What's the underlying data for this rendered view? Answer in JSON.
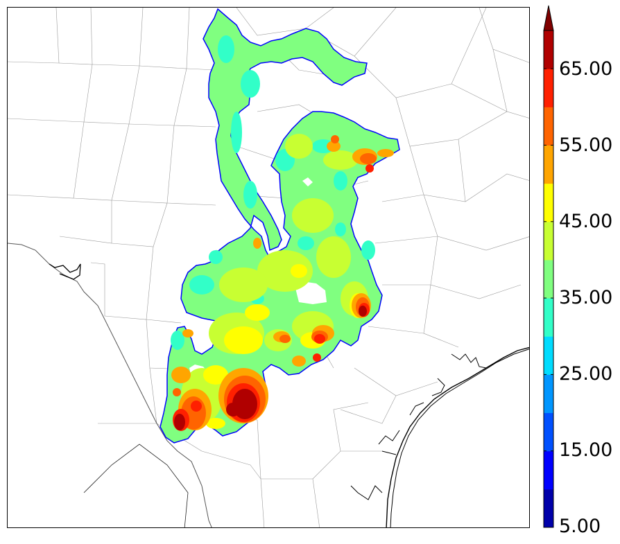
{
  "map": {
    "colors": [
      "#0000aa",
      "#0000ff",
      "#0050ff",
      "#0096ff",
      "#00dcff",
      "#32ffc8",
      "#80ff80",
      "#c8ff32",
      "#ffff00",
      "#ffa500",
      "#ff6400",
      "#ff2000",
      "#b00000"
    ],
    "levels": [
      5,
      10,
      15,
      20,
      25,
      30,
      35,
      40,
      45,
      50,
      55,
      60,
      65,
      70
    ],
    "extend": "max",
    "extend_color": "#800000"
  },
  "colorbar": {
    "labels": [
      "65.00",
      "55.00",
      "45.00",
      "35.00",
      "25.00",
      "15.00",
      "5.00"
    ]
  }
}
